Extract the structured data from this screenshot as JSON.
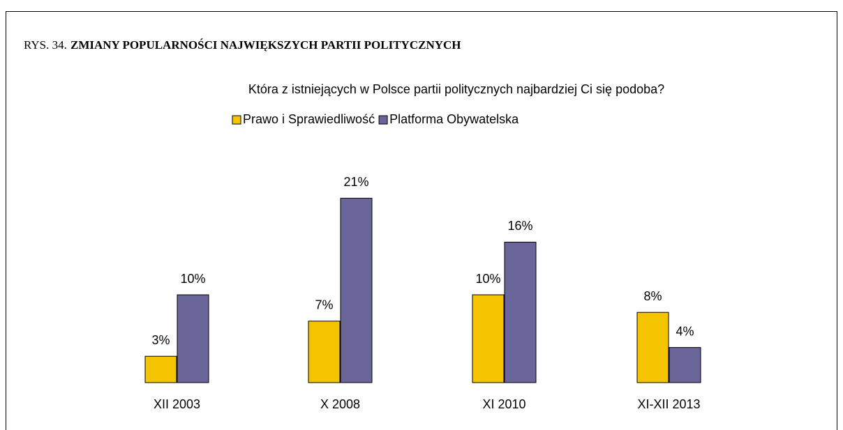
{
  "chart_data": {
    "type": "bar",
    "title_prefix": "RYS. 34.",
    "title": "ZMIANY POPULARNOŚCI NAJWIĘKSZYCH PARTII POLITYCZNYCH",
    "subtitle": "Która z istniejących w Polsce partii politycznych najbardziej Ci się podoba?",
    "categories": [
      "XII 2003",
      "X 2008",
      "XI 2010",
      "XI-XII 2013"
    ],
    "series": [
      {
        "name": "Prawo i Sprawiedliwość",
        "color": "#f5c400",
        "values": [
          3,
          7,
          10,
          8
        ],
        "value_labels": [
          "3%",
          "7%",
          "10%",
          "8%"
        ]
      },
      {
        "name": "Platforma Obywatelska",
        "color": "#6a6699",
        "values": [
          10,
          21,
          16,
          4
        ],
        "value_labels": [
          "10%",
          "21%",
          "16%",
          "4%"
        ]
      }
    ]
  }
}
